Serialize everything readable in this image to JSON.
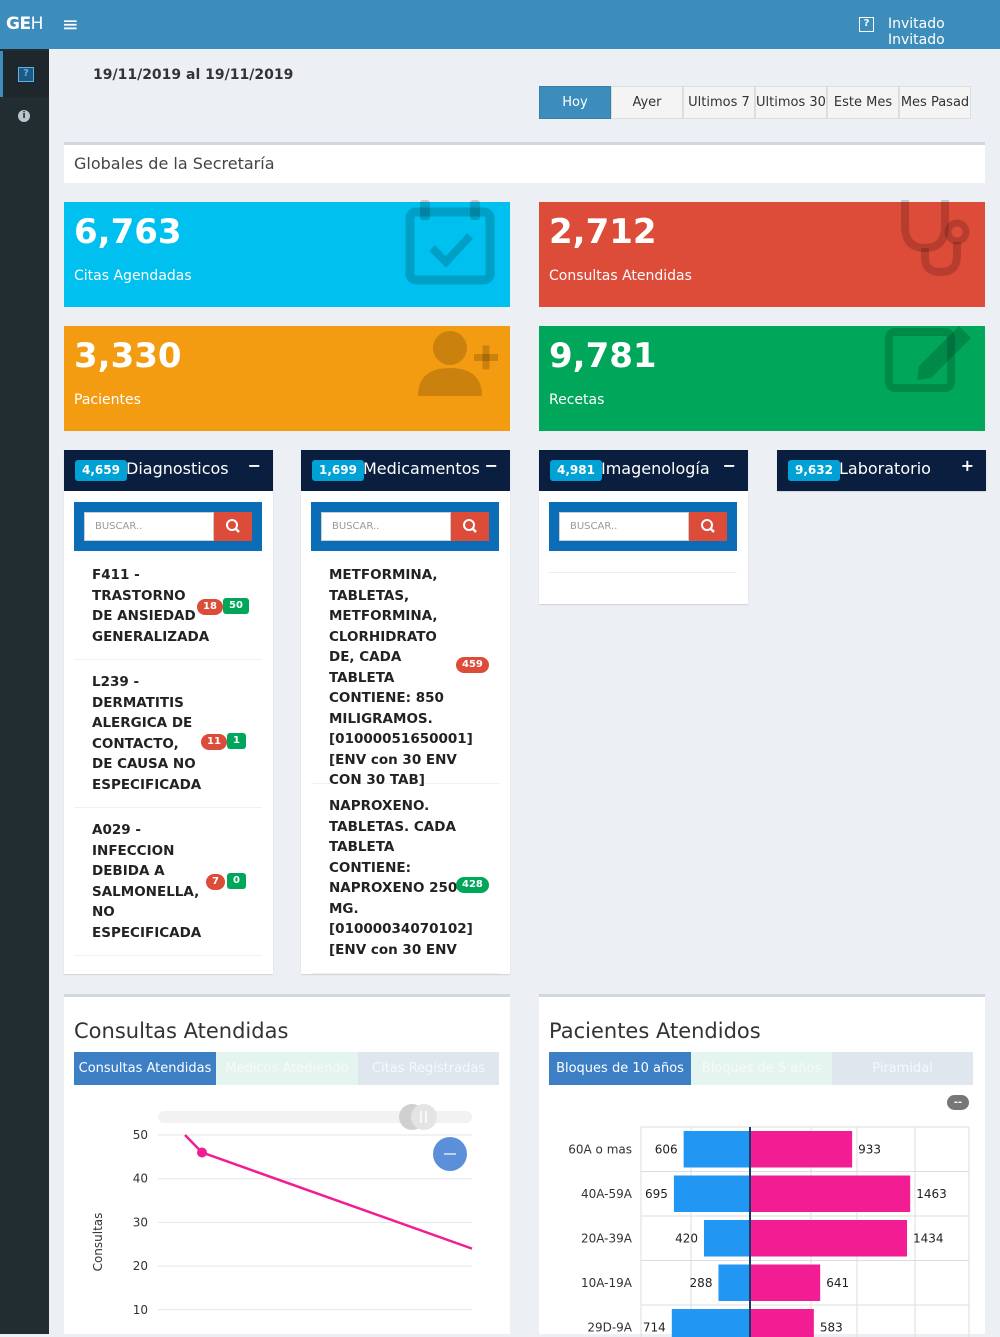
{
  "app": {
    "logo_bold": "GE",
    "logo_thin": "H",
    "user_name": "Invitado Invitado",
    "user_icon": "?"
  },
  "sidebar": {
    "icons": [
      "question-box-icon",
      "info-icon"
    ]
  },
  "date_range": "19/11/2019 al 19/11/2019",
  "range_buttons": [
    "Hoy",
    "Ayer",
    "Ultimos 7",
    "Ultimos 30",
    "Este Mes",
    "Mes Pasad"
  ],
  "section_title": "Globales de la Secretaría",
  "stats": [
    {
      "value": "6,763",
      "label": "Citas Agendadas",
      "icon": "calendar-check-icon",
      "color": "#00c0ef"
    },
    {
      "value": "2,712",
      "label": "Consultas Atendidas",
      "icon": "stethoscope-icon",
      "color": "#dd4b39"
    },
    {
      "value": "3,330",
      "label": "Pacientes",
      "icon": "user-plus-icon",
      "color": "#f39c12"
    },
    {
      "value": "9,781",
      "label": "Recetas",
      "icon": "edit-icon",
      "color": "#00a65a"
    }
  ],
  "panels": {
    "diagnosticos": {
      "count": "4,659",
      "title": "Diagnosticos",
      "tool": "−",
      "placeholder": "BUSCAR..",
      "items": [
        {
          "text": "F411 - TRASTORNO DE ANSIEDAD GENERALIZADA",
          "a": "18",
          "b": "50"
        },
        {
          "text": "L239 - DERMATITIS ALERGICA DE CONTACTO, DE CAUSA NO ESPECIFICADA",
          "a": "11",
          "b": "1"
        },
        {
          "text": "A029 - INFECCION DEBIDA A SALMONELLA, NO ESPECIFICADA",
          "a": "7",
          "b": "0"
        }
      ]
    },
    "medicamentos": {
      "count": "1,699",
      "title": "Medicamentos",
      "tool": "−",
      "placeholder": "BUSCAR..",
      "items": [
        {
          "text": "METFORMINA, TABLETAS, METFORMINA, CLORHIDRATO DE, CADA TABLETA CONTIENE: 850 MILIGRAMOS. [01000051650001] [ENV con 30 ENV CON 30 TAB]",
          "a": "459"
        },
        {
          "text": "NAPROXENO. TABLETAS. CADA TABLETA CONTIENE: NAPROXENO 250 MG. [01000034070102] [ENV con 30 ENV",
          "a": "428"
        }
      ]
    },
    "imagenologia": {
      "count": "4,981",
      "title": "Imagenología",
      "tool": "−",
      "placeholder": "BUSCAR.."
    },
    "laboratorio": {
      "count": "9,632",
      "title": "Laboratorio",
      "tool": "+"
    }
  },
  "consultas_box": {
    "title": "Consultas Atendidas",
    "tabs": [
      "Consultas Atendidas",
      "Medicos Atediendo",
      "Citas Registradas"
    ],
    "chart_data": {
      "type": "line",
      "ylabel": "Consultas",
      "y_ticks": [
        50,
        40,
        30,
        20,
        10
      ],
      "series": [
        {
          "points_note": "",
          "values": [
            50,
            46,
            24
          ]
        }
      ]
    }
  },
  "pacientes_box": {
    "title": "Pacientes Atendidos",
    "tabs": [
      "Bloques de 10 años",
      "Bloques de 5 años",
      "Piramidal"
    ],
    "toggle_label": "--",
    "chart_data": {
      "type": "bar",
      "categories": [
        "60A o mas",
        "40A-59A",
        "20A-39A",
        "10A-19A",
        "29D-9A"
      ],
      "series": [
        {
          "color": "#2196f3",
          "values": [
            606,
            695,
            420,
            288,
            714
          ]
        },
        {
          "color": "#f21d92",
          "values": [
            933,
            1463,
            1434,
            641,
            583
          ]
        }
      ]
    }
  }
}
